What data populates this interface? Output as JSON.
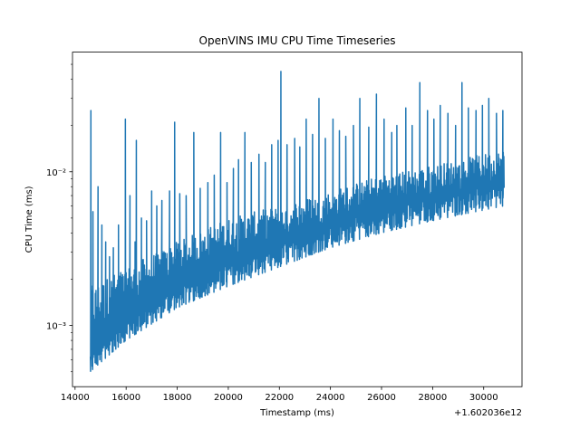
{
  "chart_data": {
    "type": "line",
    "title": "OpenVINS IMU CPU Time Timeseries",
    "xlabel": "Timestamp (ms)",
    "ylabel": "CPU Time (ms)",
    "x_offset_label": "+1.602036e12",
    "x_ticks": [
      "14000",
      "16000",
      "18000",
      "20000",
      "22000",
      "24000",
      "26000",
      "28000",
      "30000"
    ],
    "x_tick_values": [
      14000,
      16000,
      18000,
      20000,
      22000,
      24000,
      26000,
      28000,
      30000
    ],
    "y_ticks": [
      "10⁻³",
      "10⁻²"
    ],
    "y_tick_values": [
      0.001,
      0.01
    ],
    "y_scale": "log",
    "xlim": [
      13900,
      31500
    ],
    "ylim": [
      0.0004,
      0.06
    ],
    "grid": false,
    "legend": "none",
    "series_color": "#1f77b4",
    "series": [
      {
        "x_range": [
          14600,
          30800
        ],
        "floor": [
          [
            14600,
            0.0005
          ],
          [
            16000,
            0.0008
          ],
          [
            18000,
            0.0013
          ],
          [
            20000,
            0.0018
          ],
          [
            22000,
            0.0024
          ],
          [
            24000,
            0.0032
          ],
          [
            26000,
            0.004
          ],
          [
            28000,
            0.0048
          ],
          [
            30800,
            0.006
          ]
        ],
        "band_top": [
          [
            14600,
            0.0018
          ],
          [
            16000,
            0.0024
          ],
          [
            18000,
            0.0035
          ],
          [
            20000,
            0.005
          ],
          [
            22000,
            0.006
          ],
          [
            24000,
            0.0075
          ],
          [
            26000,
            0.0095
          ],
          [
            28000,
            0.011
          ],
          [
            30800,
            0.014
          ]
        ],
        "spikes": [
          [
            14620,
            0.025
          ],
          [
            14700,
            0.0055
          ],
          [
            14900,
            0.008
          ],
          [
            15050,
            0.0045
          ],
          [
            15200,
            0.0035
          ],
          [
            15350,
            0.0028
          ],
          [
            15500,
            0.0032
          ],
          [
            15700,
            0.0045
          ],
          [
            15970,
            0.022
          ],
          [
            16150,
            0.007
          ],
          [
            16350,
            0.0035
          ],
          [
            16400,
            0.016
          ],
          [
            16600,
            0.005
          ],
          [
            16800,
            0.0048
          ],
          [
            17000,
            0.0075
          ],
          [
            17200,
            0.006
          ],
          [
            17400,
            0.0065
          ],
          [
            17700,
            0.0075
          ],
          [
            17900,
            0.021
          ],
          [
            18100,
            0.0072
          ],
          [
            18350,
            0.007
          ],
          [
            18650,
            0.018
          ],
          [
            18900,
            0.0078
          ],
          [
            19200,
            0.0085
          ],
          [
            19450,
            0.0095
          ],
          [
            19700,
            0.018
          ],
          [
            19950,
            0.0085
          ],
          [
            20200,
            0.0105
          ],
          [
            20400,
            0.012
          ],
          [
            20650,
            0.018
          ],
          [
            20900,
            0.0115
          ],
          [
            21200,
            0.013
          ],
          [
            21450,
            0.0115
          ],
          [
            21700,
            0.015
          ],
          [
            21950,
            0.016
          ],
          [
            22060,
            0.045
          ],
          [
            22300,
            0.015
          ],
          [
            22600,
            0.0165
          ],
          [
            22800,
            0.0145
          ],
          [
            23050,
            0.022
          ],
          [
            23300,
            0.0175
          ],
          [
            23550,
            0.03
          ],
          [
            23800,
            0.0165
          ],
          [
            24100,
            0.022
          ],
          [
            24350,
            0.0185
          ],
          [
            24600,
            0.017
          ],
          [
            24900,
            0.02
          ],
          [
            25150,
            0.03
          ],
          [
            25500,
            0.0195
          ],
          [
            25800,
            0.032
          ],
          [
            26100,
            0.022
          ],
          [
            26400,
            0.018
          ],
          [
            26600,
            0.02
          ],
          [
            26950,
            0.026
          ],
          [
            27200,
            0.02
          ],
          [
            27500,
            0.038
          ],
          [
            27800,
            0.025
          ],
          [
            28050,
            0.022
          ],
          [
            28300,
            0.027
          ],
          [
            28600,
            0.024
          ],
          [
            28900,
            0.02
          ],
          [
            29150,
            0.038
          ],
          [
            29400,
            0.026
          ],
          [
            29700,
            0.025
          ],
          [
            29950,
            0.027
          ],
          [
            30200,
            0.03
          ],
          [
            30500,
            0.024
          ],
          [
            30750,
            0.025
          ]
        ]
      }
    ]
  }
}
